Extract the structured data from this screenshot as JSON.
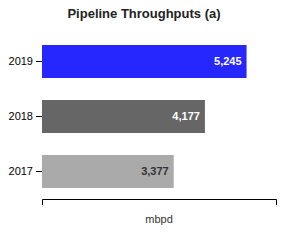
{
  "chart_data": {
    "type": "bar",
    "orientation": "horizontal",
    "title": "Pipeline Throughputs (a)",
    "categories": [
      "2019",
      "2018",
      "2017"
    ],
    "values": [
      5245,
      4177,
      3377
    ],
    "value_labels": [
      "5,245",
      "4,177",
      "3,377"
    ],
    "colors": [
      "#2626ff",
      "#666666",
      "#aaaaaa"
    ],
    "xlabel": "mbpd",
    "xlim": [
      0,
      6000
    ],
    "data_labels": true,
    "tick_labels": "y",
    "grid": false
  }
}
